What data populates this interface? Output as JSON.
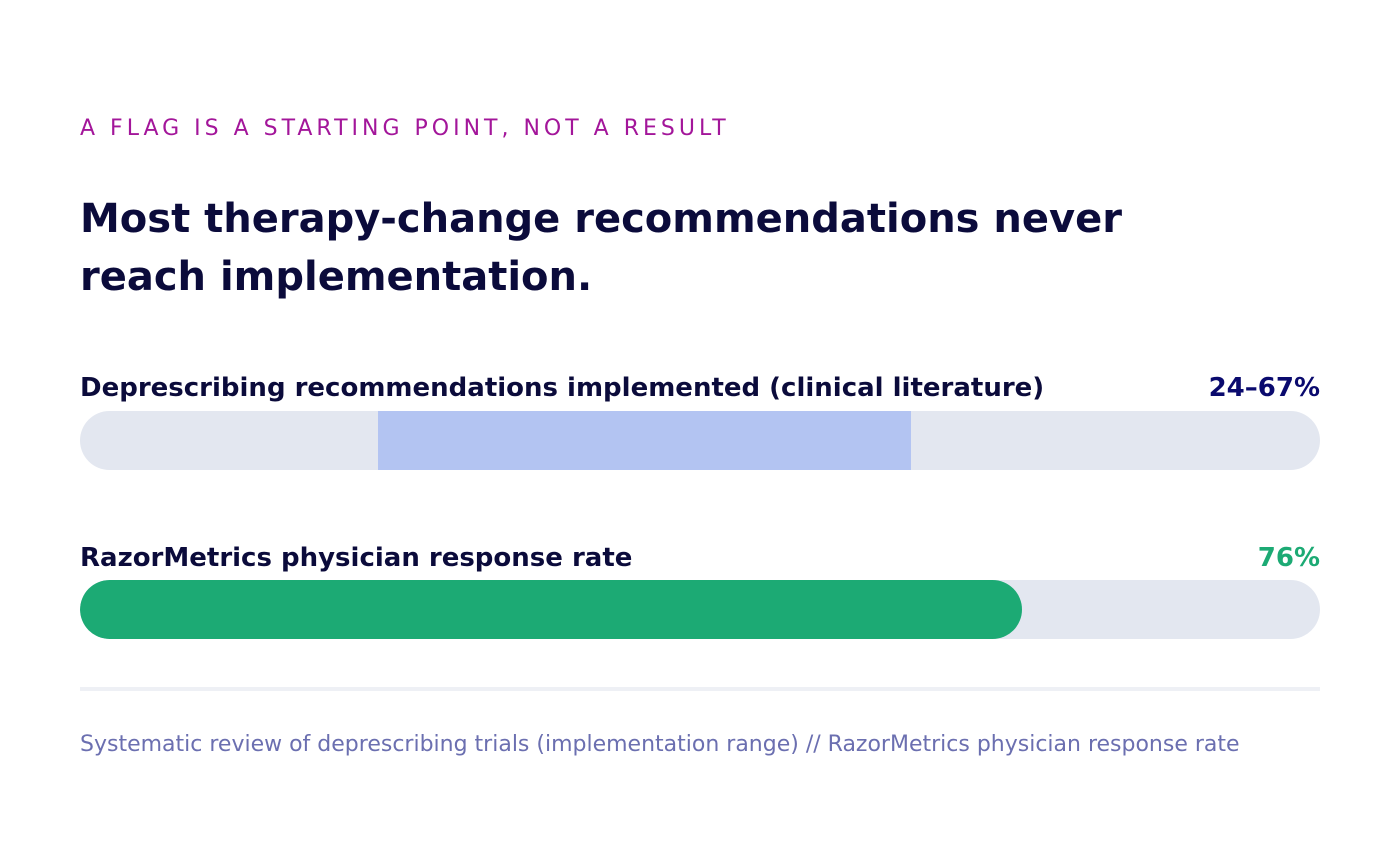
{
  "eyebrow": "A FLAG IS A STARTING POINT, NOT A RESULT",
  "headline": "Most therapy-change recommendations never reach implementation.",
  "colors": {
    "eyebrow": "#a3169a",
    "text": "#0b0b3b",
    "track": "#e3e7f0",
    "range_fill": "#b3c4f2",
    "range_value": "#0a0a6e",
    "rate_fill": "#1caa74",
    "rate_value": "#1caa74",
    "source": "#6b6fb0"
  },
  "chart_data": {
    "type": "bar",
    "orientation": "horizontal",
    "xlim": [
      0,
      100
    ],
    "unit": "%",
    "rows": [
      {
        "label": "Deprescribing recommendations implemented (clinical literature)",
        "value_label": "24–67%",
        "range": [
          24,
          67
        ]
      },
      {
        "label": "RazorMetrics physician response rate",
        "value_label": "76%",
        "value": 76
      }
    ]
  },
  "source": "Systematic review of deprescribing trials (implementation range) // RazorMetrics physician response rate"
}
